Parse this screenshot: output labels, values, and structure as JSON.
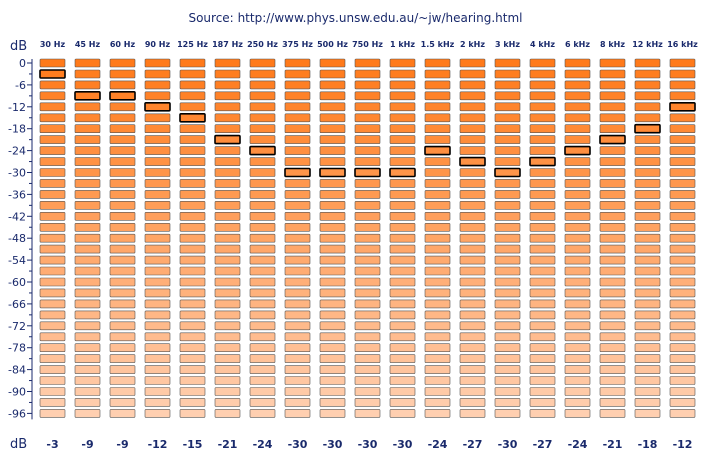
{
  "source": {
    "label": "Source:",
    "url": "http://www.phys.unsw.edu.au/~jw/hearing.html"
  },
  "chart_data": {
    "type": "table",
    "ylabel_top": "dB",
    "xlabel_bottom": "dB",
    "categories": [
      "30 Hz",
      "45 Hz",
      "60 Hz",
      "90 Hz",
      "125 Hz",
      "187 Hz",
      "250 Hz",
      "375 Hz",
      "500 Hz",
      "750 Hz",
      "1 kHz",
      "1.5 kHz",
      "2 kHz",
      "3 kHz",
      "4 kHz",
      "6 kHz",
      "8 kHz",
      "12 kHz",
      "16 kHz"
    ],
    "values": [
      -3,
      -9,
      -9,
      -12,
      -15,
      -21,
      -24,
      -30,
      -30,
      -30,
      -30,
      -24,
      -27,
      -30,
      -27,
      -24,
      -21,
      -18,
      -12
    ],
    "y_tick_labels": [
      "0",
      "-6",
      "-12",
      "-18",
      "-24",
      "-30",
      "-36",
      "-42",
      "-48",
      "-54",
      "-60",
      "-66",
      "-72",
      "-78",
      "-84",
      "-90",
      "-96"
    ],
    "ylim": [
      -99,
      0
    ],
    "level_step": 3,
    "level_count": 33,
    "colors": {
      "cell_top": "#ff7a1a",
      "cell_bottom": "#ffcfb0",
      "cell_border": "#555555",
      "marker_border": "#000000",
      "text": "#1a2a6c"
    }
  }
}
